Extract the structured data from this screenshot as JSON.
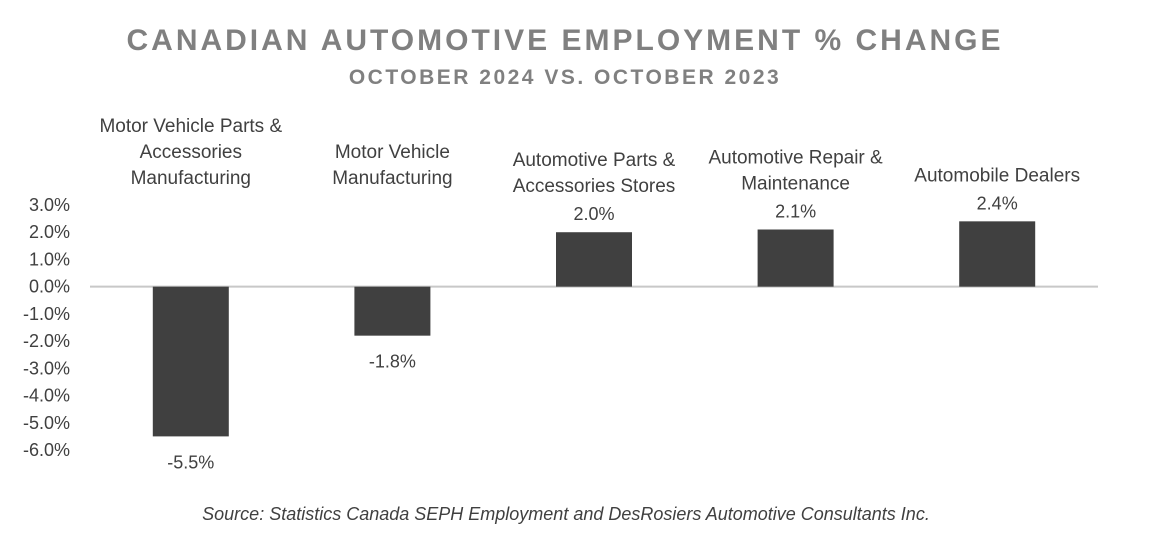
{
  "chart_data": {
    "type": "bar",
    "title": "CANADIAN AUTOMOTIVE EMPLOYMENT % CHANGE",
    "subtitle": "OCTOBER 2024 VS. OCTOBER 2023",
    "categories": [
      [
        "Motor Vehicle Parts &",
        "Accessories",
        "Manufacturing"
      ],
      [
        "Motor Vehicle",
        "Manufacturing"
      ],
      [
        "Automotive Parts &",
        "Accessories Stores"
      ],
      [
        "Automotive Repair &",
        "Maintenance"
      ],
      [
        "Automobile Dealers"
      ]
    ],
    "values": [
      -5.5,
      -1.8,
      2.0,
      2.1,
      2.4
    ],
    "data_labels": [
      "-5.5%",
      "-1.8%",
      "2.0%",
      "2.1%",
      "2.4%"
    ],
    "ylim": [
      -6,
      3
    ],
    "y_ticks": [
      "3.0%",
      "2.0%",
      "1.0%",
      "0.0%",
      "-1.0%",
      "-2.0%",
      "-3.0%",
      "-4.0%",
      "-5.0%",
      "-6.0%"
    ],
    "grid": false,
    "legend": "none",
    "bar_color": "#404040",
    "axis_color": "#c8c8c8",
    "source": "Source: Statistics Canada SEPH Employment and DesRosiers Automotive Consultants Inc."
  }
}
